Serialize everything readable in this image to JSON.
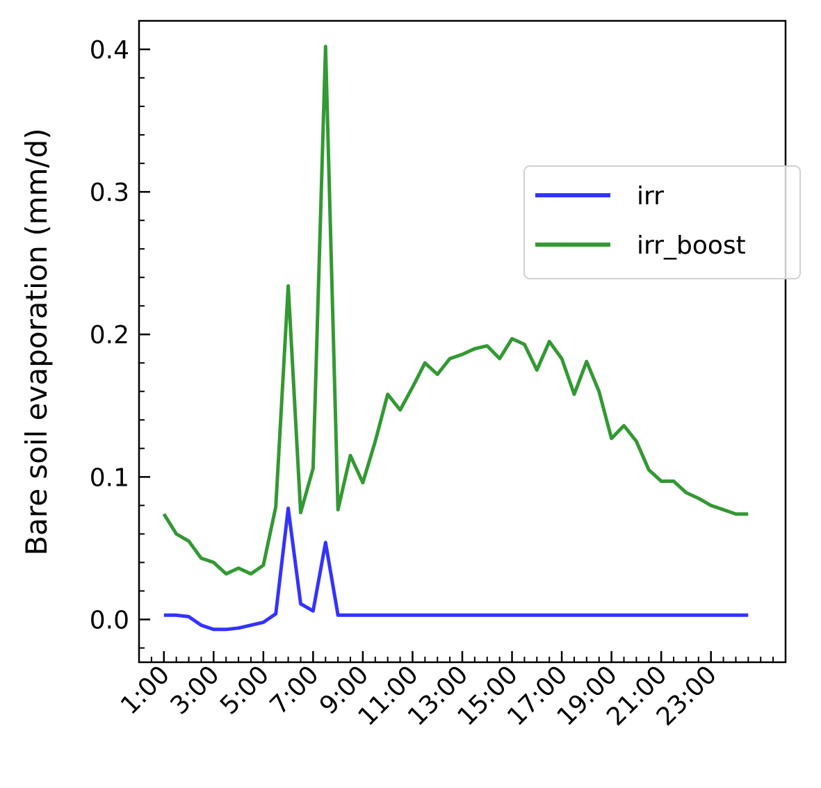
{
  "chart_data": {
    "type": "line",
    "title": "",
    "xlabel": "",
    "ylabel": "Bare soil evaporation (mm/d)",
    "ylim": [
      -0.03,
      0.42
    ],
    "yticks": [
      "0.0",
      "0.1",
      "0.2",
      "0.3",
      "0.4"
    ],
    "x_tick_labels": [
      "1:00",
      "3:00",
      "5:00",
      "7:00",
      "9:00",
      "11:00",
      "13:00",
      "15:00",
      "17:00",
      "19:00",
      "21:00",
      "23:00"
    ],
    "x_tick_hours": [
      1,
      3,
      5,
      7,
      9,
      11,
      13,
      15,
      17,
      19,
      21,
      23
    ],
    "x_hours": [
      1,
      1.5,
      2,
      2.5,
      3,
      3.5,
      4,
      4.5,
      5,
      5.5,
      6,
      6.5,
      7,
      7.5,
      8,
      8.5,
      9,
      9.5,
      10,
      10.5,
      11,
      11.5,
      12,
      12.5,
      13,
      13.5,
      14,
      14.5,
      15,
      15.5,
      16,
      16.5,
      17,
      17.5,
      18,
      18.5,
      19,
      19.5,
      20,
      20.5,
      21,
      21.5,
      22,
      22.5,
      23,
      23.5,
      24,
      24.5
    ],
    "xlim": [
      0,
      26
    ],
    "legend_position": "center-right",
    "grid": false,
    "series": [
      {
        "name": "irr",
        "color": "#3333ff",
        "values": [
          0.003,
          0.003,
          0.002,
          -0.004,
          -0.007,
          -0.007,
          -0.006,
          -0.004,
          -0.002,
          0.004,
          0.078,
          0.011,
          0.006,
          0.054,
          0.003,
          0.003,
          0.003,
          0.003,
          0.003,
          0.003,
          0.003,
          0.003,
          0.003,
          0.003,
          0.003,
          0.003,
          0.003,
          0.003,
          0.003,
          0.003,
          0.003,
          0.003,
          0.003,
          0.003,
          0.003,
          0.003,
          0.003,
          0.003,
          0.003,
          0.003,
          0.003,
          0.003,
          0.003,
          0.003,
          0.003,
          0.003,
          0.003,
          0.003
        ]
      },
      {
        "name": "irr_boost",
        "color": "#339933",
        "values": [
          0.074,
          0.06,
          0.055,
          0.043,
          0.04,
          0.032,
          0.036,
          0.032,
          0.038,
          0.079,
          0.234,
          0.075,
          0.106,
          0.402,
          0.077,
          0.115,
          0.096,
          0.125,
          0.158,
          0.147,
          0.163,
          0.18,
          0.172,
          0.183,
          0.186,
          0.19,
          0.192,
          0.183,
          0.197,
          0.193,
          0.175,
          0.195,
          0.183,
          0.158,
          0.181,
          0.16,
          0.127,
          0.136,
          0.125,
          0.105,
          0.097,
          0.097,
          0.089,
          0.085,
          0.08,
          0.077,
          0.074,
          0.074
        ]
      }
    ]
  }
}
